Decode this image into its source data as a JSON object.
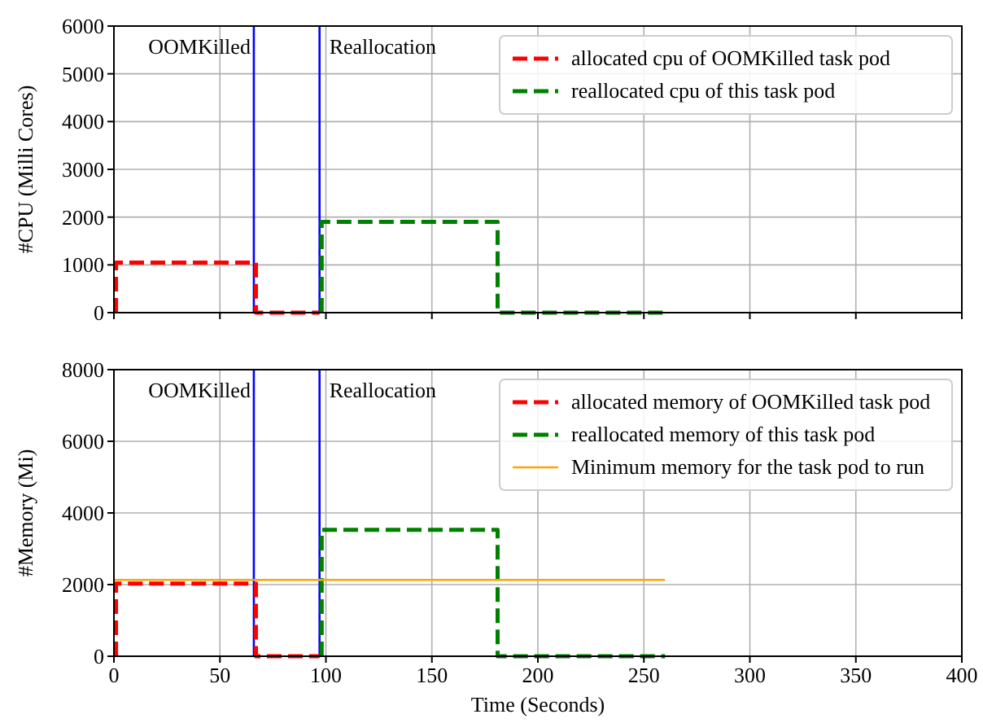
{
  "chart_data": [
    {
      "type": "line",
      "ylabel": "#CPU (Milli Cores)",
      "xlim": [
        0,
        400
      ],
      "xticks": [
        0,
        50,
        100,
        150,
        200,
        250,
        300,
        350,
        400
      ],
      "ylim": [
        0,
        6000
      ],
      "yticks": [
        0,
        1000,
        2000,
        3000,
        4000,
        5000,
        6000
      ],
      "grid": true,
      "legend": "top right",
      "tick_labels": "y",
      "series": [
        {
          "name": "allocated cpu of OOMKilled task pod",
          "color": "#ff0000",
          "line_style": "dashed",
          "x": [
            1,
            1,
            67,
            67,
            97
          ],
          "values": [
            0,
            1050,
            1050,
            0,
            0
          ]
        },
        {
          "name": "reallocated cpu of this task pod",
          "color": "#008000",
          "line_style": "dashed",
          "x": [
            98,
            98,
            181,
            181,
            260
          ],
          "values": [
            0,
            1900,
            1900,
            0,
            0
          ]
        }
      ],
      "ref_lines": [
        {
          "axis": "x",
          "value": 66,
          "label": "OOMKilled",
          "color": "#0000ff"
        },
        {
          "axis": "x",
          "value": 97,
          "label": "Reallocation",
          "color": "#0000ff"
        }
      ]
    },
    {
      "type": "line",
      "ylabel": "#Memory (Mi)",
      "xlabel": "Time (Seconds)",
      "xlim": [
        0,
        400
      ],
      "xticks": [
        0,
        50,
        100,
        150,
        200,
        250,
        300,
        350,
        400
      ],
      "ylim": [
        0,
        8000
      ],
      "yticks": [
        0,
        2000,
        4000,
        6000,
        8000
      ],
      "grid": true,
      "legend": "top right",
      "series": [
        {
          "name": "allocated memory of OOMKilled task pod",
          "color": "#ff0000",
          "line_style": "dashed",
          "x": [
            1,
            1,
            67,
            67,
            97
          ],
          "values": [
            0,
            2030,
            2030,
            0,
            0
          ]
        },
        {
          "name": "reallocated memory of this task pod",
          "color": "#008000",
          "line_style": "dashed",
          "x": [
            98,
            98,
            181,
            181,
            260
          ],
          "values": [
            0,
            3530,
            3530,
            0,
            0
          ]
        },
        {
          "name": "Minimum memory for the task pod to run",
          "color": "#ffa500",
          "line_style": "solid",
          "x": [
            0,
            260
          ],
          "values": [
            2130,
            2130
          ]
        }
      ],
      "ref_lines": [
        {
          "axis": "x",
          "value": 66,
          "label": "OOMKilled",
          "color": "#0000ff"
        },
        {
          "axis": "x",
          "value": 97,
          "label": "Reallocation",
          "color": "#0000ff"
        }
      ]
    }
  ]
}
